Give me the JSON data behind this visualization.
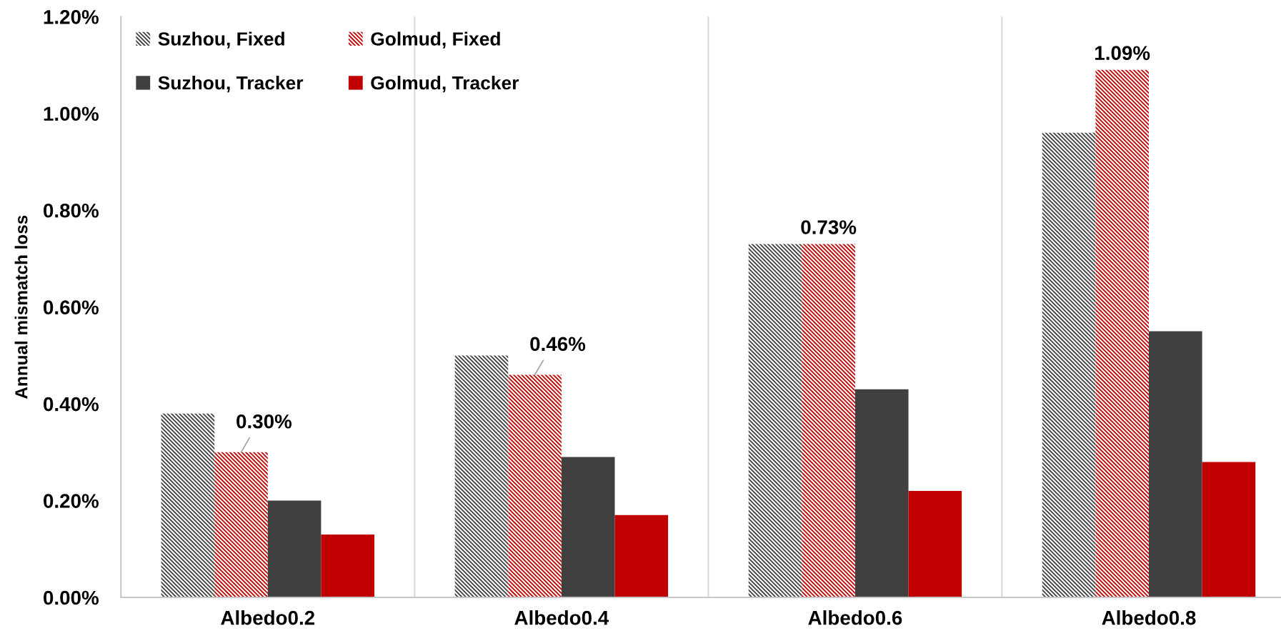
{
  "chart_data": {
    "type": "bar",
    "ylabel": "Annual mismatch loss",
    "categories": [
      "Albedo0.2",
      "Albedo0.4",
      "Albedo0.6",
      "Albedo0.8"
    ],
    "series": [
      {
        "name": "Suzhou, Fixed",
        "color": "#404040",
        "values": [
          0.38,
          0.5,
          0.73,
          0.96
        ]
      },
      {
        "name": "Golmud, Fixed",
        "color": "#c00000",
        "values": [
          0.3,
          0.46,
          0.73,
          1.09
        ],
        "value_labels": [
          "0.30%",
          "0.46%",
          "0.73%",
          "1.09%"
        ]
      },
      {
        "name": "Suzhou, Tracker",
        "color": "#404040",
        "values": [
          0.2,
          0.29,
          0.43,
          0.55
        ]
      },
      {
        "name": "Golmud, Tracker",
        "color": "#c00000",
        "values": [
          0.13,
          0.17,
          0.22,
          0.28
        ]
      }
    ],
    "ylim": [
      0,
      1.2
    ],
    "yticks": [
      {
        "value": 0,
        "label": "0.00%"
      },
      {
        "value": 0.2,
        "label": "0.20%"
      },
      {
        "value": 0.4,
        "label": "0.40%"
      },
      {
        "value": 0.6,
        "label": "0.60%"
      },
      {
        "value": 0.8,
        "label": "0.80%"
      },
      {
        "value": 1.0,
        "label": "1.00%"
      },
      {
        "value": 1.2,
        "label": "1.20%"
      }
    ],
    "grid": "x",
    "legend": "top left"
  }
}
